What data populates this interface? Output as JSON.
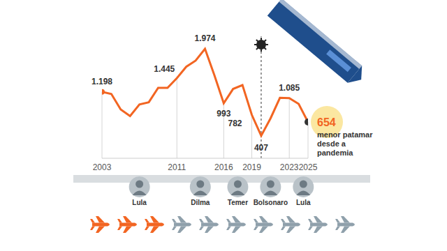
{
  "chart_data": {
    "type": "line",
    "x": [
      2003,
      2004,
      2005,
      2006,
      2007,
      2008,
      2009,
      2010,
      2011,
      2012,
      2013,
      2014,
      2015,
      2016,
      2017,
      2018,
      2019,
      2020,
      2021,
      2022,
      2023,
      2024,
      2025
    ],
    "values": [
      1198,
      1160,
      880,
      760,
      970,
      1010,
      1270,
      1270,
      1445,
      1650,
      1760,
      1974,
      1500,
      993,
      1250,
      1320,
      782,
      407,
      720,
      1090,
      1085,
      980,
      654
    ],
    "value_labels": [
      "1.198",
      null,
      null,
      null,
      null,
      null,
      null,
      null,
      "1.445",
      null,
      null,
      "1.974",
      null,
      "993",
      null,
      null,
      "782",
      "407",
      null,
      null,
      "1.085",
      null,
      "654"
    ],
    "color": "#f26522",
    "data_labels": true,
    "xlim": [
      2003,
      2025
    ],
    "xticks": [
      2003,
      2011,
      2016,
      2019,
      2023,
      2025
    ],
    "ylim": [
      0,
      2200
    ],
    "tick_labels": "x",
    "annotation": "menor patamar desde a pandemia",
    "reference_lines": [
      {
        "x": 2020
      }
    ],
    "periods": [
      {
        "name": "Lula",
        "start": 2003,
        "end": 2011
      },
      {
        "name": "Dilma",
        "start": 2011,
        "end": 2016
      },
      {
        "name": "Temer",
        "start": 2016,
        "end": 2019
      },
      {
        "name": "Bolsonaro",
        "start": 2019,
        "end": 2023
      },
      {
        "name": "Lula",
        "start": 2023,
        "end": 2026
      }
    ],
    "icon_row": {
      "count": 10,
      "highlighted": 3
    }
  }
}
